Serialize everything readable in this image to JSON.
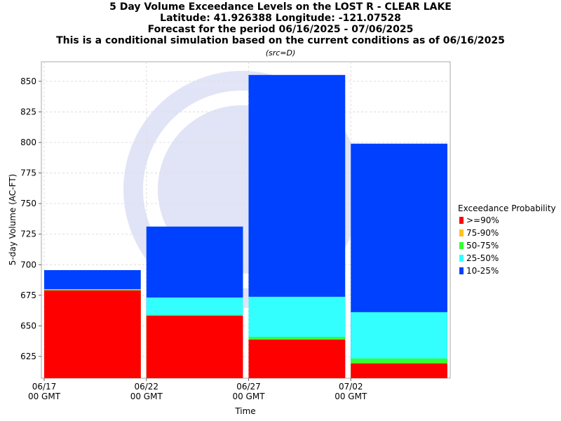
{
  "chart_data": {
    "type": "bar",
    "title": [
      "5 Day Volume Exceedance Levels on the LOST R - CLEAR LAKE",
      "Latitude: 41.926388 Longitude: -121.07528",
      "Forecast for the period 06/16/2025 - 07/06/2025",
      "This is a conditional simulation based on the current conditions as of 06/16/2025"
    ],
    "subtitle": "(src=D)",
    "x_label": "Time",
    "y_label": "5-day Volume (AC-FT)",
    "legend_title": "Exceedance Probability",
    "categories": [
      "06/17 00 GMT",
      "06/22 00 GMT",
      "06/27 00 GMT",
      "07/02 00 GMT"
    ],
    "series": [
      {
        "name": ">=90%",
        "color": "#ff0000",
        "values": [
          679,
          658.3,
          638.8,
          619.3
        ]
      },
      {
        "name": "75-90%",
        "color": "#ffc020",
        "values": [
          679.2,
          658.5,
          639,
          619.5
        ]
      },
      {
        "name": "50-75%",
        "color": "#33ff33",
        "values": [
          679.5,
          659,
          641,
          623.3
        ]
      },
      {
        "name": "25-50%",
        "color": "#33ffff",
        "values": [
          680,
          673.2,
          673.8,
          661.2
        ]
      },
      {
        "name": "10-25%",
        "color": "#0040ff",
        "values": [
          695.6,
          731.2,
          855.2,
          799
        ]
      }
    ],
    "ylim": [
      607.2,
      866
    ],
    "yticks": [
      625,
      650,
      675,
      700,
      725,
      750,
      775,
      800,
      825,
      850
    ],
    "grid": true
  }
}
